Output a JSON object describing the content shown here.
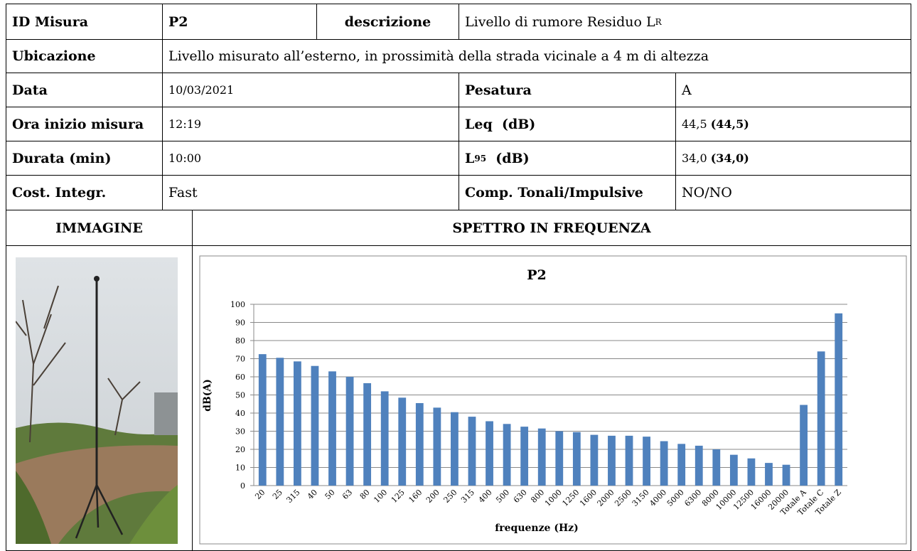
{
  "table": {
    "rows": [
      [
        "ID Misura",
        "P2",
        "descrizione",
        {
          "text": "Livello di rumore Residuo L",
          "sub": "R"
        }
      ],
      [
        "Ubicazione",
        "Livello misurato all’esterno, in prossimità della strada vicinale a 4 m di altezza"
      ],
      [
        "Data",
        "10/03/2021",
        "Pesatura",
        "A"
      ],
      [
        "Ora inizio misura",
        "12:19",
        "Leq  (dB)",
        {
          "value": "44,5",
          "bold": "(44,5)"
        }
      ],
      [
        "Durata (min)",
        "10:00",
        {
          "text": "L",
          "sub": "95",
          "after": "  (dB)"
        },
        {
          "value": "34,0",
          "bold": "(34,0)"
        }
      ],
      [
        "Cost. Integr.",
        "Fast",
        "Comp. Tonali/Impulsive",
        "NO/NO"
      ],
      [
        "IMMAGINE",
        "SPETTRO IN FREQUENZA"
      ]
    ]
  },
  "chart_data": {
    "type": "bar",
    "title": "P2",
    "y_label": "dB(A)",
    "x_label": "frequenze (Hz)",
    "categories": [
      "20",
      "25",
      "315",
      "40",
      "50",
      "63",
      "80",
      "100",
      "125",
      "160",
      "200",
      "250",
      "315",
      "400",
      "500",
      "630",
      "800",
      "1000",
      "1250",
      "1600",
      "2000",
      "2500",
      "3150",
      "4000",
      "5000",
      "6300",
      "8000",
      "10000",
      "12500",
      "16000",
      "20000",
      "Totale A",
      "Totale C",
      "Totale Z"
    ],
    "values": [
      72.5,
      70.5,
      68.5,
      66,
      63,
      60,
      56.5,
      52,
      48.5,
      45.5,
      43,
      40.5,
      38,
      35.5,
      34,
      32.5,
      31.5,
      30,
      29.5,
      28,
      27.5,
      27.5,
      27,
      24.5,
      23,
      22,
      20,
      17,
      15,
      12.5,
      11.5,
      44.5,
      74,
      95
    ],
    "color": "#4f81bd",
    "ylim": [
      0,
      100
    ],
    "yticks": [
      0,
      10,
      20,
      30,
      40,
      50,
      60,
      70,
      80,
      90,
      100
    ],
    "grid": true
  }
}
